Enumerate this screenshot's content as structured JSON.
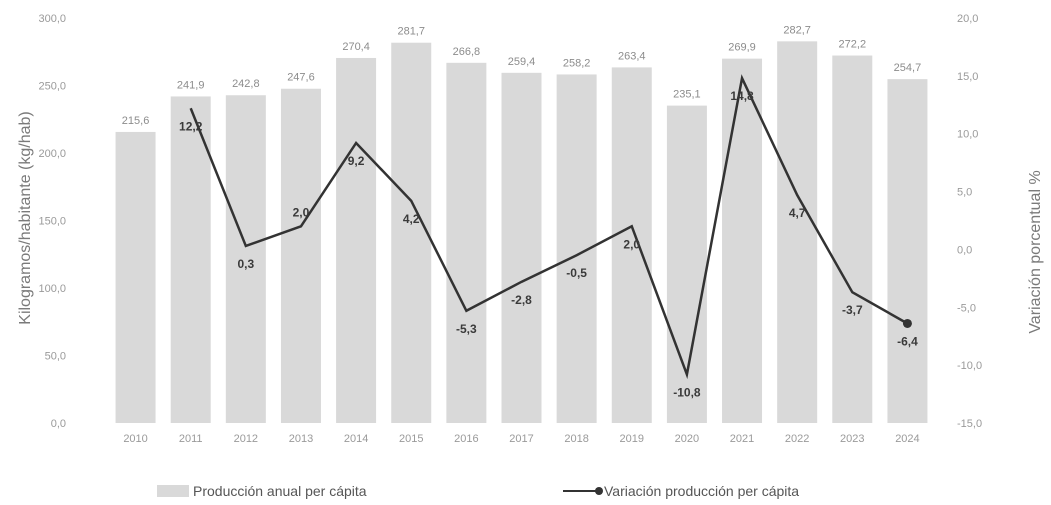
{
  "chart_data": {
    "type": "bar+line",
    "categories": [
      "2010",
      "2011",
      "2012",
      "2013",
      "2014",
      "2015",
      "2016",
      "2017",
      "2018",
      "2019",
      "2020",
      "2021",
      "2022",
      "2023",
      "2024"
    ],
    "bar_series": {
      "name": "Producción anual per cápita",
      "values": [
        215.6,
        241.9,
        242.8,
        247.6,
        270.4,
        281.7,
        266.8,
        259.4,
        258.2,
        263.4,
        235.1,
        269.9,
        282.7,
        272.2,
        254.7
      ],
      "labels": [
        "215,6",
        "241,9",
        "242,8",
        "247,6",
        "270,4",
        "281,7",
        "266,8",
        "259,4",
        "258,2",
        "263,4",
        "235,1",
        "269,9",
        "282,7",
        "272,2",
        "254,7"
      ],
      "color": "#d9d9d9"
    },
    "line_series": {
      "name": "Variación producción per cápita",
      "categories": [
        "2011",
        "2012",
        "2013",
        "2014",
        "2015",
        "2016",
        "2017",
        "2018",
        "2019",
        "2020",
        "2021",
        "2022",
        "2023",
        "2024"
      ],
      "values": [
        12.2,
        0.3,
        2.0,
        9.2,
        4.2,
        -5.3,
        -2.8,
        -0.5,
        2.0,
        -10.8,
        14.8,
        4.7,
        -3.7,
        -6.4
      ],
      "labels": [
        "12,2",
        "0,3",
        "2,0",
        "9,2",
        "4,2",
        "-5,3",
        "-2,8",
        "-0,5",
        "2,0",
        "-10,8",
        "14,8",
        "4,7",
        "-3,7",
        "-6,4"
      ],
      "color": "#333333"
    },
    "y_left": {
      "label": "Kilogramos/habitante (kg/hab)",
      "min": 0,
      "max": 300,
      "ticks": [
        0,
        50,
        100,
        150,
        200,
        250,
        300
      ],
      "tick_labels": [
        "0,0",
        "50,0",
        "100,0",
        "150,0",
        "200,0",
        "250,0",
        "300,0"
      ]
    },
    "y_right": {
      "label": "Variación porcentual %",
      "min": -15,
      "max": 20,
      "ticks": [
        -15,
        -10,
        -5,
        0,
        5,
        10,
        15,
        20
      ],
      "tick_labels": [
        "-15,0",
        "-10,0",
        "-5,0",
        "0,0",
        "5,0",
        "10,0",
        "15,0",
        "20,0"
      ]
    },
    "legend": {
      "position": "bottom",
      "items": [
        "Producción anual per cápita",
        "Variación producción per cápita"
      ]
    },
    "grid": false
  }
}
